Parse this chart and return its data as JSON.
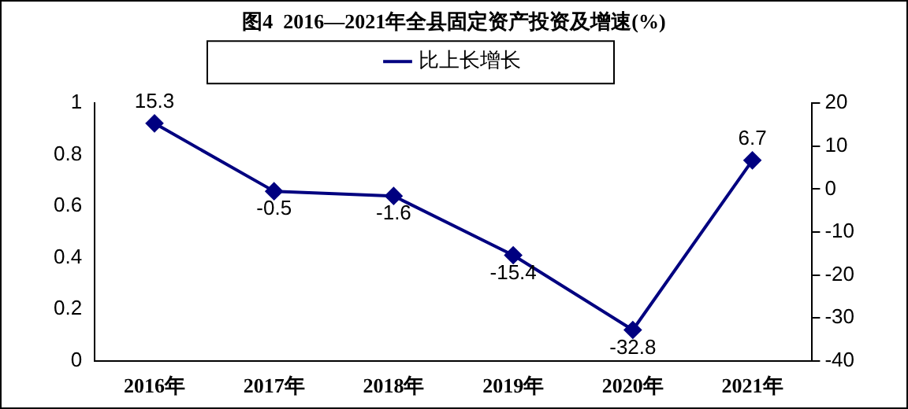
{
  "chart_data": {
    "type": "line",
    "title": "图4  2016—2021年全县固定资产投资及增速(%)",
    "categories": [
      "2016年",
      "2017年",
      "2018年",
      "2019年",
      "2020年",
      "2021年"
    ],
    "series": [
      {
        "name": "比上长增长",
        "color": "#000080",
        "values": [
          15.3,
          -0.5,
          -1.6,
          -15.4,
          -32.8,
          6.7
        ],
        "axis": "y2"
      }
    ],
    "ylim": [
      0,
      1
    ],
    "yticks": [
      0,
      0.2,
      0.4,
      0.6,
      0.8,
      1
    ],
    "y2lim": [
      -40,
      20
    ],
    "y2ticks": [
      -40,
      -30,
      -20,
      -10,
      0,
      10,
      20
    ],
    "marker": "diamond",
    "line_style": "solid",
    "legend": "top",
    "grid": false,
    "data_labels": true
  }
}
